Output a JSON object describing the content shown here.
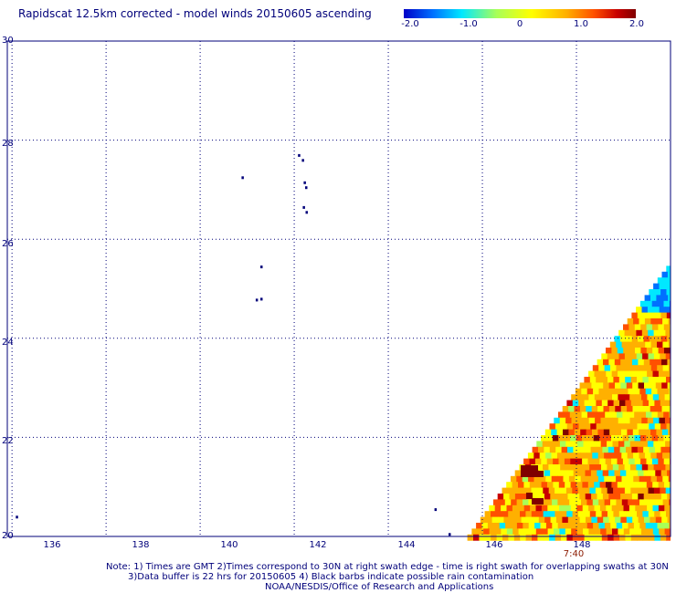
{
  "title": "Rapidscat 12.5km corrected - model winds 20150605 ascending",
  "colorbar": {
    "labels": [
      "-2.0",
      "-1.0",
      "0",
      "1.0",
      "2.0"
    ],
    "range": [
      -2.0,
      2.0
    ],
    "colors": [
      "#0000c8",
      "#0070ff",
      "#00e8ff",
      "#a8ff58",
      "#ffff00",
      "#ffb000",
      "#ff5000",
      "#c80000",
      "#800000"
    ]
  },
  "map": {
    "lat_ticks": [
      "30",
      "28",
      "26",
      "24",
      "22",
      "20"
    ],
    "lon_ticks": [
      "136",
      "138",
      "140",
      "142",
      "144",
      "146",
      "148"
    ],
    "lat_range": [
      20,
      30
    ],
    "lon_range": [
      135.9,
      150
    ],
    "grid": true,
    "swath_time": "7:40",
    "land_color": "#00007a",
    "islands": [
      [
        142.1,
        27.7
      ],
      [
        142.18,
        27.6
      ],
      [
        142.25,
        27.05
      ],
      [
        142.22,
        27.15
      ],
      [
        142.2,
        26.65
      ],
      [
        142.26,
        26.55
      ],
      [
        140.9,
        27.25
      ],
      [
        141.3,
        25.45
      ],
      [
        141.3,
        24.8
      ],
      [
        141.2,
        24.78
      ],
      [
        145.0,
        20.55
      ],
      [
        145.3,
        20.05
      ],
      [
        136.1,
        20.4
      ]
    ]
  },
  "notes": {
    "line1": "Note: 1) Times are GMT 2)Times correspond to 30N at right swath edge - time is right swath for overlapping swaths at 30N",
    "line2": "3)Data buffer is 22 hrs for 20150605 4) Black barbs indicate possible rain contamination",
    "line3": "NOAA/NESDIS/Office of Research and Applications"
  }
}
